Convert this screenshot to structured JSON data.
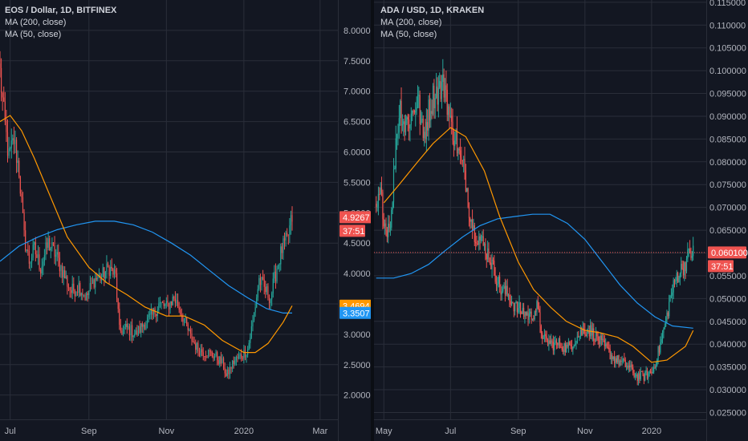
{
  "panels": [
    {
      "title": "EOS / Dollar, 1D, BITFINEX",
      "indicators": [
        "MA (200, close)",
        "MA (50, close)"
      ],
      "price_tag": "4.9267",
      "countdown": "37:51",
      "ma200_tag": "3.3507",
      "ma50_tag": "3.4694",
      "current_price": 4.9267
    },
    {
      "title": "ADA / USD, 1D, KRAKEN",
      "indicators": [
        "MA (200, close)",
        "MA (50, close)"
      ],
      "price_tag": "0.060100",
      "countdown": "37:51",
      "current_price": 0.0601
    }
  ],
  "colors": {
    "background": "#131722",
    "grid": "#2a2e39",
    "up": "#26a69a",
    "down": "#ef5350",
    "ma200": "#2196f3",
    "ma50": "#ff9800",
    "axis_text": "#b2b5be"
  },
  "chart_data": [
    {
      "type": "candlestick",
      "title": "EOS / Dollar, 1D, BITFINEX",
      "ylim": [
        1.6,
        8.5
      ],
      "y_ticks": [
        "2.0000",
        "2.5000",
        "3.0000",
        "3.5000",
        "4.0000",
        "4.5000",
        "5.0000",
        "5.5000",
        "6.0000",
        "6.5000",
        "7.0000",
        "7.5000",
        "8.0000"
      ],
      "x_ticks": [
        "Jul",
        "Sep",
        "Nov",
        "2020",
        "Mar"
      ],
      "xlim": [
        "2019-06-23",
        "2020-03-15"
      ],
      "close_path": [
        [
          "2019-06-23",
          7.3
        ],
        [
          "2019-06-26",
          6.6
        ],
        [
          "2019-06-30",
          5.9
        ],
        [
          "2019-07-04",
          6.2
        ],
        [
          "2019-07-08",
          5.7
        ],
        [
          "2019-07-12",
          4.6
        ],
        [
          "2019-07-16",
          4.2
        ],
        [
          "2019-07-20",
          4.4
        ],
        [
          "2019-07-25",
          4.1
        ],
        [
          "2019-07-31",
          4.5
        ],
        [
          "2019-08-06",
          4.3
        ],
        [
          "2019-08-12",
          4.0
        ],
        [
          "2019-08-18",
          3.7
        ],
        [
          "2019-08-24",
          3.8
        ],
        [
          "2019-08-30",
          3.6
        ],
        [
          "2019-09-05",
          3.9
        ],
        [
          "2019-09-11",
          3.95
        ],
        [
          "2019-09-17",
          4.1
        ],
        [
          "2019-09-22",
          3.95
        ],
        [
          "2019-09-25",
          3.05
        ],
        [
          "2019-10-01",
          3.1
        ],
        [
          "2019-10-08",
          3.0
        ],
        [
          "2019-10-15",
          3.2
        ],
        [
          "2019-10-21",
          3.3
        ],
        [
          "2019-10-26",
          3.5
        ],
        [
          "2019-11-01",
          3.45
        ],
        [
          "2019-11-07",
          3.6
        ],
        [
          "2019-11-13",
          3.35
        ],
        [
          "2019-11-20",
          2.95
        ],
        [
          "2019-11-26",
          2.75
        ],
        [
          "2019-12-02",
          2.7
        ],
        [
          "2019-12-09",
          2.65
        ],
        [
          "2019-12-16",
          2.5
        ],
        [
          "2019-12-18",
          2.3
        ],
        [
          "2019-12-24",
          2.55
        ],
        [
          "2019-12-30",
          2.65
        ],
        [
          "2020-01-04",
          2.75
        ],
        [
          "2020-01-08",
          3.2
        ],
        [
          "2020-01-13",
          3.9
        ],
        [
          "2020-01-17",
          3.75
        ],
        [
          "2020-01-22",
          3.6
        ],
        [
          "2020-01-27",
          4.1
        ],
        [
          "2020-01-31",
          4.4
        ],
        [
          "2020-02-04",
          4.55
        ],
        [
          "2020-02-08",
          4.92
        ]
      ],
      "ma200": [
        [
          "2019-06-23",
          4.2
        ],
        [
          "2019-07-08",
          4.45
        ],
        [
          "2019-07-23",
          4.6
        ],
        [
          "2019-08-07",
          4.72
        ],
        [
          "2019-08-22",
          4.8
        ],
        [
          "2019-09-06",
          4.86
        ],
        [
          "2019-09-21",
          4.86
        ],
        [
          "2019-10-06",
          4.8
        ],
        [
          "2019-10-21",
          4.68
        ],
        [
          "2019-11-05",
          4.5
        ],
        [
          "2019-11-20",
          4.3
        ],
        [
          "2019-12-05",
          4.05
        ],
        [
          "2019-12-20",
          3.8
        ],
        [
          "2020-01-04",
          3.6
        ],
        [
          "2020-01-19",
          3.42
        ],
        [
          "2020-02-01",
          3.35
        ],
        [
          "2020-02-08",
          3.35
        ]
      ],
      "ma50": [
        [
          "2019-06-23",
          6.5
        ],
        [
          "2019-07-01",
          6.6
        ],
        [
          "2019-07-10",
          6.35
        ],
        [
          "2019-07-20",
          5.9
        ],
        [
          "2019-08-01",
          5.3
        ],
        [
          "2019-08-15",
          4.6
        ],
        [
          "2019-09-01",
          4.1
        ],
        [
          "2019-09-15",
          3.85
        ],
        [
          "2019-10-01",
          3.65
        ],
        [
          "2019-10-15",
          3.45
        ],
        [
          "2019-11-01",
          3.3
        ],
        [
          "2019-11-15",
          3.3
        ],
        [
          "2019-12-01",
          3.15
        ],
        [
          "2019-12-15",
          2.9
        ],
        [
          "2020-01-01",
          2.7
        ],
        [
          "2020-01-10",
          2.7
        ],
        [
          "2020-01-20",
          2.85
        ],
        [
          "2020-02-01",
          3.2
        ],
        [
          "2020-02-08",
          3.47
        ]
      ]
    },
    {
      "type": "candlestick",
      "title": "ADA / USD, 1D, KRAKEN",
      "ylim": [
        0.0235,
        0.1155
      ],
      "y_ticks": [
        "0.025000",
        "0.030000",
        "0.035000",
        "0.040000",
        "0.045000",
        "0.050000",
        "0.055000",
        "0.060000",
        "0.065000",
        "0.070000",
        "0.075000",
        "0.080000",
        "0.085000",
        "0.090000",
        "0.095000",
        "0.100000",
        "0.105000",
        "0.110000",
        "0.115000"
      ],
      "x_ticks": [
        "May",
        "Jul",
        "Sep",
        "Nov",
        "2020"
      ],
      "xlim": [
        "2019-04-22",
        "2020-02-20"
      ],
      "close_path": [
        [
          "2019-04-24",
          0.069
        ],
        [
          "2019-04-28",
          0.073
        ],
        [
          "2019-05-03",
          0.065
        ],
        [
          "2019-05-08",
          0.068
        ],
        [
          "2019-05-12",
          0.085
        ],
        [
          "2019-05-16",
          0.092
        ],
        [
          "2019-05-20",
          0.088
        ],
        [
          "2019-05-26",
          0.09
        ],
        [
          "2019-06-01",
          0.094
        ],
        [
          "2019-06-06",
          0.085
        ],
        [
          "2019-06-11",
          0.091
        ],
        [
          "2019-06-16",
          0.095
        ],
        [
          "2019-06-22",
          0.096
        ],
        [
          "2019-06-26",
          0.097
        ],
        [
          "2019-07-01",
          0.088
        ],
        [
          "2019-07-06",
          0.085
        ],
        [
          "2019-07-10",
          0.08
        ],
        [
          "2019-07-14",
          0.078
        ],
        [
          "2019-07-18",
          0.07
        ],
        [
          "2019-07-22",
          0.065
        ],
        [
          "2019-07-28",
          0.063
        ],
        [
          "2019-08-04",
          0.06
        ],
        [
          "2019-08-10",
          0.056
        ],
        [
          "2019-08-16",
          0.052
        ],
        [
          "2019-08-22",
          0.051
        ],
        [
          "2019-08-30",
          0.048
        ],
        [
          "2019-09-06",
          0.047
        ],
        [
          "2019-09-12",
          0.046
        ],
        [
          "2019-09-18",
          0.048
        ],
        [
          "2019-09-24",
          0.041
        ],
        [
          "2019-10-02",
          0.04
        ],
        [
          "2019-10-09",
          0.04
        ],
        [
          "2019-10-16",
          0.039
        ],
        [
          "2019-10-23",
          0.041
        ],
        [
          "2019-10-30",
          0.043
        ],
        [
          "2019-11-06",
          0.043
        ],
        [
          "2019-11-13",
          0.041
        ],
        [
          "2019-11-20",
          0.039
        ],
        [
          "2019-11-27",
          0.037
        ],
        [
          "2019-12-04",
          0.036
        ],
        [
          "2019-12-11",
          0.035
        ],
        [
          "2019-12-18",
          0.033
        ],
        [
          "2019-12-25",
          0.033
        ],
        [
          "2020-01-02",
          0.034
        ],
        [
          "2020-01-08",
          0.039
        ],
        [
          "2020-01-13",
          0.044
        ],
        [
          "2020-01-18",
          0.05
        ],
        [
          "2020-01-24",
          0.055
        ],
        [
          "2020-01-30",
          0.057
        ],
        [
          "2020-02-05",
          0.06
        ],
        [
          "2020-02-08",
          0.0601
        ]
      ],
      "ma200": [
        [
          "2019-04-24",
          0.0545
        ],
        [
          "2019-05-10",
          0.0545
        ],
        [
          "2019-05-26",
          0.0555
        ],
        [
          "2019-06-11",
          0.0575
        ],
        [
          "2019-06-26",
          0.0605
        ],
        [
          "2019-07-12",
          0.0635
        ],
        [
          "2019-07-28",
          0.066
        ],
        [
          "2019-08-13",
          0.0675
        ],
        [
          "2019-08-29",
          0.068
        ],
        [
          "2019-09-14",
          0.0685
        ],
        [
          "2019-09-30",
          0.0685
        ],
        [
          "2019-10-16",
          0.0665
        ],
        [
          "2019-11-01",
          0.063
        ],
        [
          "2019-11-17",
          0.058
        ],
        [
          "2019-12-03",
          0.053
        ],
        [
          "2019-12-19",
          0.049
        ],
        [
          "2020-01-04",
          0.046
        ],
        [
          "2020-01-20",
          0.044
        ],
        [
          "2020-02-08",
          0.0435
        ]
      ],
      "ma50": [
        [
          "2019-05-01",
          0.071
        ],
        [
          "2019-05-15",
          0.075
        ],
        [
          "2019-06-01",
          0.08
        ],
        [
          "2019-06-15",
          0.084
        ],
        [
          "2019-07-01",
          0.0875
        ],
        [
          "2019-07-15",
          0.0855
        ],
        [
          "2019-08-01",
          0.078
        ],
        [
          "2019-08-15",
          0.068
        ],
        [
          "2019-09-01",
          0.058
        ],
        [
          "2019-09-15",
          0.052
        ],
        [
          "2019-10-01",
          0.048
        ],
        [
          "2019-10-15",
          0.045
        ],
        [
          "2019-11-01",
          0.043
        ],
        [
          "2019-11-15",
          0.0425
        ],
        [
          "2019-12-01",
          0.0415
        ],
        [
          "2019-12-15",
          0.0395
        ],
        [
          "2020-01-01",
          0.036
        ],
        [
          "2020-01-15",
          0.0365
        ],
        [
          "2020-02-01",
          0.0395
        ],
        [
          "2020-02-08",
          0.043
        ]
      ]
    }
  ]
}
